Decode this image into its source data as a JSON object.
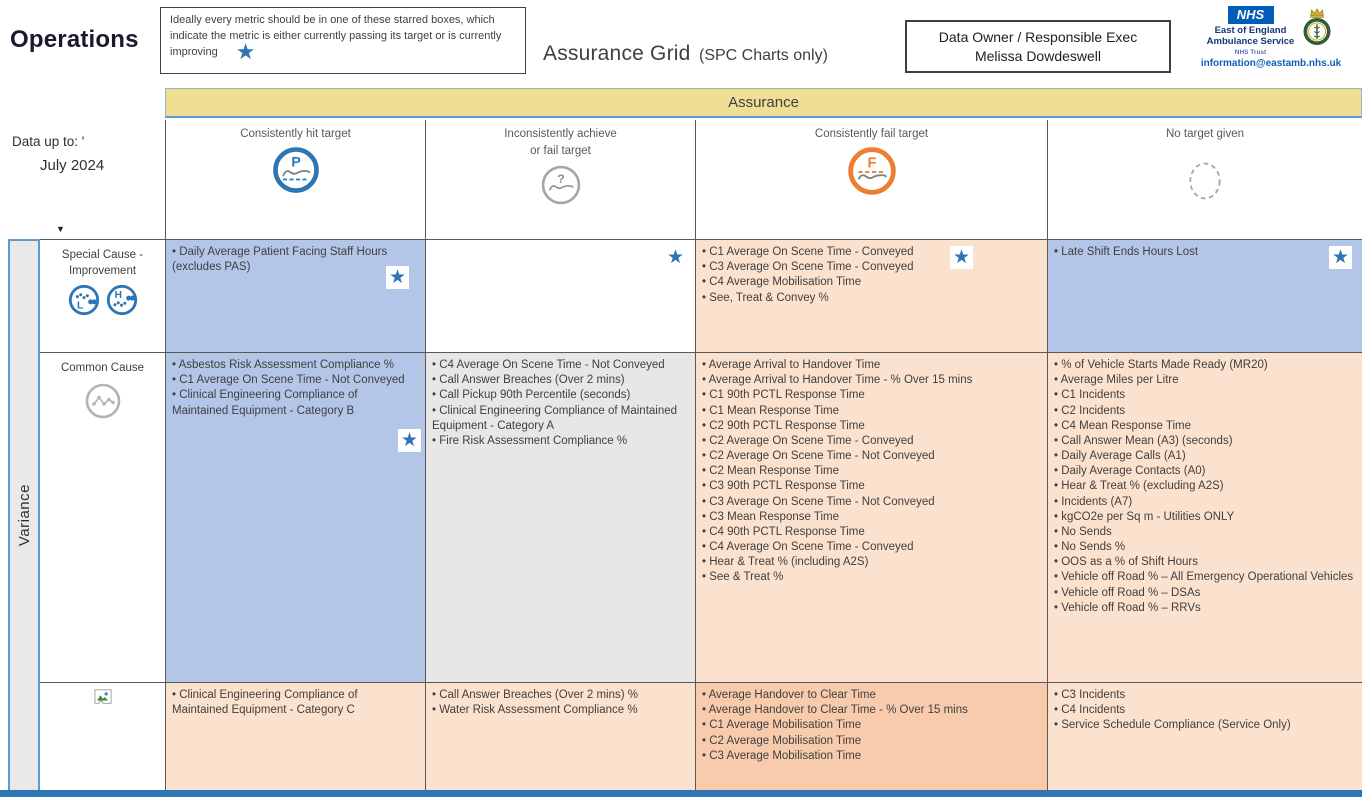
{
  "page": {
    "title": "Operations",
    "note": "Ideally every metric should be in one of these starred boxes, which indicate the metric is either currently passing its target or is currently improving",
    "grid_title": "Assurance Grid",
    "grid_title_suffix": "(SPC Charts only)",
    "owner_line1": "Data Owner / Responsible Exec",
    "owner_line2": "Melissa Dowdeswell"
  },
  "logo": {
    "nhs": "NHS",
    "org_line1": "East of England",
    "org_line2": "Ambulance Service",
    "trust_label": "NHS Trust",
    "email": "information@eastamb.nhs.uk"
  },
  "filters": {
    "data_up_to_label": "Data up to: '",
    "data_up_to_value": "July 2024"
  },
  "axis": {
    "assurance_label": "Assurance",
    "variance_label": "Variance"
  },
  "columns": [
    {
      "label": "Consistently hit target",
      "icon": "pass-target-icon"
    },
    {
      "label": "Inconsistently achieve or fail target",
      "icon": "query-target-icon"
    },
    {
      "label": "Consistently fail target",
      "icon": "fail-target-icon"
    },
    {
      "label": "No target given",
      "icon": "no-target-icon"
    }
  ],
  "rows": [
    {
      "label": "Special Cause - Improvement",
      "icon": "special-cause-improvement-icons"
    },
    {
      "label": "Common Cause",
      "icon": "common-cause-icon"
    },
    {
      "label": "",
      "icon": "broken-image-icon"
    }
  ],
  "cells": {
    "r1c1": {
      "bg": "blue",
      "star": true,
      "items": [
        "Daily Average Patient Facing Staff Hours (excludes PAS)"
      ]
    },
    "r1c2": {
      "bg": "white",
      "star": true,
      "items": []
    },
    "r1c3": {
      "bg": "peach",
      "star": true,
      "items": [
        "C1 Average On Scene Time - Conveyed",
        "C3 Average On Scene Time - Conveyed",
        "C4 Average Mobilisation Time",
        "See, Treat & Convey %"
      ]
    },
    "r1c4": {
      "bg": "blue",
      "star": true,
      "items": [
        "Late Shift Ends Hours Lost"
      ]
    },
    "r2c1": {
      "bg": "blue",
      "star": true,
      "items": [
        "Asbestos Risk Assessment Compliance %",
        "C1 Average On Scene Time - Not Conveyed",
        "Clinical Engineering Compliance of Maintained Equipment - Category B"
      ]
    },
    "r2c2": {
      "bg": "gray",
      "star": false,
      "items": [
        "C4 Average On Scene Time - Not Conveyed",
        "Call Answer Breaches (Over 2 mins)",
        "Call Pickup 90th Percentile (seconds)",
        "Clinical Engineering Compliance of Maintained Equipment - Category A",
        "Fire Risk Assessment Compliance %"
      ]
    },
    "r2c3": {
      "bg": "peach",
      "star": false,
      "items": [
        "Average Arrival to Handover Time",
        "Average Arrival to Handover Time - % Over 15 mins",
        "C1 90th PCTL Response Time",
        "C1 Mean Response Time",
        "C2 90th PCTL Response Time",
        "C2 Average On Scene Time - Conveyed",
        "C2 Average On Scene Time - Not Conveyed",
        "C2 Mean Response Time",
        "C3 90th PCTL Response Time",
        "C3 Average On Scene Time - Not Conveyed",
        "C3 Mean Response Time",
        "C4 90th PCTL Response Time",
        "C4 Average On Scene Time - Conveyed",
        "Hear & Treat % (including A2S)",
        "See & Treat %"
      ]
    },
    "r2c4": {
      "bg": "peach",
      "star": false,
      "items": [
        "% of Vehicle Starts Made Ready (MR20)",
        "Average Miles per Litre",
        "C1 Incidents",
        "C2 Incidents",
        "C4 Mean Response Time",
        "Call Answer Mean (A3) (seconds)",
        "Daily Average Calls (A1)",
        "Daily Average Contacts (A0)",
        "Hear & Treat % (excluding A2S)",
        "Incidents (A7)",
        "kgCO2e per Sq m - Utilities ONLY",
        "No Sends",
        "No Sends %",
        "OOS as a % of Shift Hours",
        "Vehicle off Road % – All Emergency Operational Vehicles",
        "Vehicle off Road % – DSAs",
        "Vehicle off Road % – RRVs"
      ]
    },
    "r3c1": {
      "bg": "peach",
      "star": false,
      "items": [
        "Clinical Engineering Compliance of Maintained Equipment - Category C"
      ]
    },
    "r3c2": {
      "bg": "peach",
      "star": false,
      "items": [
        "Call Answer Breaches (Over 2 mins) %",
        "Water Risk Assessment Compliance %"
      ]
    },
    "r3c3": {
      "bg": "salmon",
      "star": false,
      "items": [
        "Average Handover to Clear Time",
        "Average Handover to Clear Time - % Over 15 mins",
        "C1 Average Mobilisation Time",
        "C2 Average Mobilisation Time",
        "C3 Average Mobilisation Time"
      ]
    },
    "r3c4": {
      "bg": "peach",
      "star": false,
      "items": [
        "C3 Incidents",
        "C4 Incidents",
        "Service Schedule Compliance (Service Only)"
      ]
    }
  },
  "icons": {
    "star": "★",
    "dropdown": "▼"
  },
  "colors": {
    "cell_blue": "#b4c6e7",
    "cell_peach": "#fbe2cf",
    "cell_salmon": "#f8cbad",
    "cell_gray": "#e8e7e6",
    "band_yellow": "#efdf94",
    "band_border_blue": "#5B9BD5",
    "accent_blue": "#2e75b6",
    "accent_orange": "#ed7d31",
    "icon_gray": "#a6a6a6",
    "nhs_blue": "#005EB8",
    "grid_line": "#595959"
  }
}
